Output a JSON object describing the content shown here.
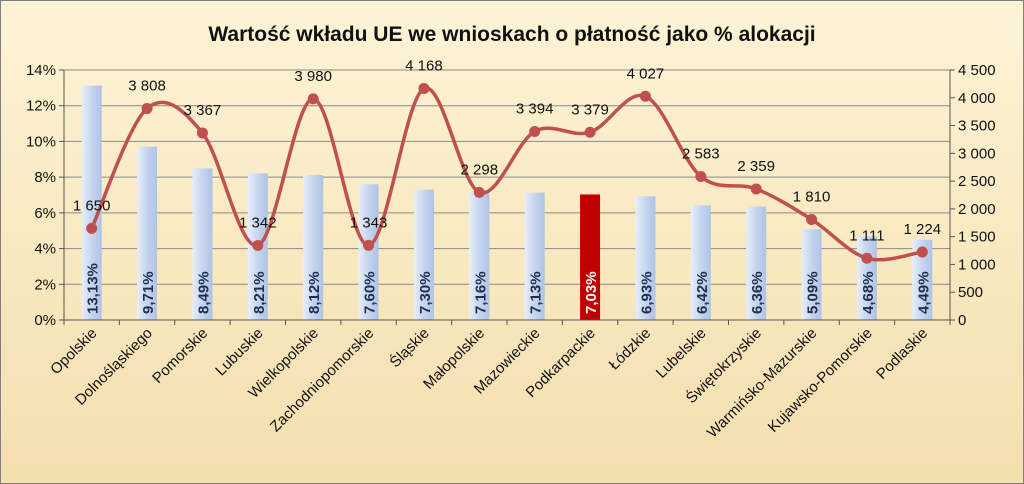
{
  "chart_data": {
    "type": "bar",
    "title": "Wartość wkładu UE we wnioskach o płatność jako % alokacji",
    "categories": [
      "Opolskie",
      "Dolnośląskiego",
      "Pomorskie",
      "Lubuskie",
      "Wielkopolskie",
      "Zachodniopomorskie",
      "Śląskie",
      "Małopolskie",
      "Mazowieckie",
      "Podkarpackie",
      "Łódzkie",
      "Lubelskie",
      "Świętokrzyskie",
      "Warmińsko-Mazurskie",
      "Kujawsko-Pomorskie",
      "Podlaskie"
    ],
    "series": [
      {
        "chart": "bar",
        "axis": "left",
        "values": [
          13.13,
          9.71,
          8.49,
          8.21,
          8.12,
          7.6,
          7.3,
          7.16,
          7.13,
          7.03,
          6.93,
          6.42,
          6.36,
          5.09,
          4.68,
          4.49
        ],
        "labels": [
          "13,13%",
          "9,71%",
          "8,49%",
          "8,21%",
          "8,12%",
          "7,60%",
          "7,30%",
          "7,16%",
          "7,13%",
          "7,03%",
          "6,93%",
          "6,42%",
          "6,36%",
          "5,09%",
          "4,68%",
          "4,49%"
        ],
        "highlight_index": 9,
        "color": "#c5d5ee",
        "highlight_color": "#c00000"
      },
      {
        "chart": "line",
        "axis": "right",
        "values": [
          1650,
          3808,
          3367,
          1342,
          3980,
          1343,
          4168,
          2298,
          3394,
          3379,
          4027,
          2583,
          2359,
          1810,
          1111,
          1224
        ],
        "labels": [
          "1 650",
          "3 808",
          "3 367",
          "1 342",
          "3 980",
          "1 343",
          "4 168",
          "2 298",
          "3 394",
          "3 379",
          "4 027",
          "2 583",
          "2 359",
          "1 810",
          "1 111",
          "1 224"
        ],
        "color": "#c0504d"
      }
    ],
    "y_left": {
      "range": [
        0,
        14
      ],
      "ticks": [
        "0%",
        "2%",
        "4%",
        "6%",
        "8%",
        "10%",
        "12%",
        "14%"
      ]
    },
    "y_right": {
      "range": [
        0,
        4500
      ],
      "ticks": [
        "0",
        "500",
        "1 000",
        "1 500",
        "2 000",
        "2 500",
        "3 000",
        "3 500",
        "4 000",
        "4 500"
      ]
    },
    "grid": true,
    "legend": "none"
  }
}
